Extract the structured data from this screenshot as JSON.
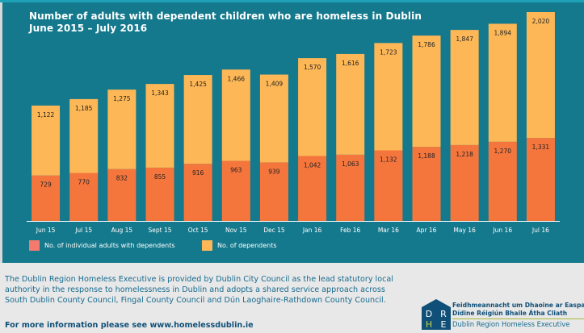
{
  "chart_data": {
    "type": "bar",
    "stacked": true,
    "title": "Number of adults with dependent children who are homeless in Dublin",
    "subtitle": "June 2015 – July 2016",
    "xlabel": "",
    "ylabel": "",
    "categories": [
      "Jun 15",
      "Jul 15",
      "Aug 15",
      "Sept 15",
      "Oct 15",
      "Nov 15",
      "Dec 15",
      "Jan 16",
      "Feb 16",
      "Mar 16",
      "Apr 16",
      "May 16",
      "Jun 16",
      "Jul 16"
    ],
    "series": [
      {
        "name": "No. of individual adults with dependents",
        "color": "#f5763d",
        "values": [
          729,
          770,
          832,
          855,
          916,
          963,
          939,
          1042,
          1063,
          1132,
          1188,
          1218,
          1270,
          1331
        ],
        "labels": [
          "729",
          "770",
          "832",
          "855",
          "916",
          "963",
          "939",
          "1,042",
          "1,063",
          "1,132",
          "1,188",
          "1,218",
          "1,270",
          "1,331"
        ]
      },
      {
        "name": "No. of dependents",
        "color": "#fdb756",
        "values": [
          1122,
          1185,
          1275,
          1343,
          1425,
          1466,
          1409,
          1570,
          1616,
          1723,
          1786,
          1847,
          1894,
          2020
        ],
        "labels": [
          "1,122",
          "1,185",
          "1,275",
          "1,343",
          "1,425",
          "1,466",
          "1,409",
          "1,570",
          "1,616",
          "1,723",
          "1,786",
          "1,847",
          "1,894",
          "2,020"
        ]
      }
    ],
    "ylim": [
      0,
      3351
    ],
    "grid": false,
    "legend_position": "bottom-left"
  },
  "colors": {
    "panel_background": "#14798c",
    "axis_line": "#ffffff",
    "footer_text": "#176b8f"
  },
  "footer": {
    "description": "The Dublin Region Homeless Executive is provided by Dublin City Council as the lead statutory local authority in the response to homelessness in Dublin and adopts a shared service approach across South Dublin County Council, Fingal County Council and Dún Laoghaire-Rathdown County Council.",
    "more_info": "For more information please see www.homelessdublin.ie"
  },
  "logo": {
    "mark_letters": [
      "D",
      "R",
      "H",
      "E"
    ],
    "line1": "Feidhmeannacht um Dhaoine ar Easpa",
    "line2": "Dídine Réigiún Bhaile Átha Cliath",
    "line3": "Dublin Region Homeless Executive"
  }
}
